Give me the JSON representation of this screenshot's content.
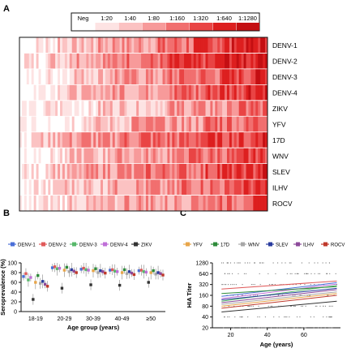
{
  "panels": {
    "a": "A",
    "b": "B",
    "c": "C"
  },
  "chart_data": [
    {
      "panel": "A",
      "type": "heatmap",
      "title": "",
      "scale": {
        "labels": [
          "Neg",
          "1:20",
          "1:40",
          "1:80",
          "1:160",
          "1:320",
          "1:640",
          "1:1280"
        ],
        "colors": [
          "#ffffff",
          "#fde3e3",
          "#fbc2c2",
          "#f79a9a",
          "#f16f6f",
          "#e94444",
          "#dd1f1f",
          "#c40f12"
        ]
      },
      "rows": [
        "DENV-1",
        "DENV-2",
        "DENV-3",
        "DENV-4",
        "ZIKV",
        "YFV",
        "17D",
        "WNV",
        "SLEV",
        "ILHV",
        "ROCV"
      ],
      "row_levels": [
        [
          0,
          1,
          1,
          2,
          2,
          2,
          3,
          3,
          3,
          3,
          3,
          4,
          4,
          4,
          5,
          5,
          5,
          6,
          6,
          6
        ],
        [
          1,
          1,
          2,
          2,
          3,
          3,
          3,
          3,
          4,
          4,
          4,
          4,
          5,
          5,
          5,
          5,
          6,
          6,
          6,
          7
        ],
        [
          0,
          0,
          1,
          1,
          2,
          2,
          2,
          3,
          3,
          3,
          3,
          3,
          4,
          4,
          4,
          4,
          5,
          5,
          5,
          6
        ],
        [
          0,
          1,
          1,
          2,
          2,
          2,
          3,
          3,
          3,
          3,
          3,
          4,
          4,
          4,
          4,
          5,
          5,
          5,
          6,
          6
        ],
        [
          0,
          0,
          1,
          1,
          1,
          1,
          2,
          2,
          2,
          2,
          2,
          2,
          3,
          3,
          3,
          3,
          3,
          4,
          4,
          4
        ],
        [
          0,
          0,
          1,
          1,
          1,
          2,
          2,
          2,
          2,
          3,
          3,
          3,
          3,
          3,
          3,
          4,
          4,
          4,
          4,
          5
        ],
        [
          1,
          2,
          2,
          3,
          3,
          3,
          3,
          3,
          4,
          4,
          4,
          4,
          4,
          4,
          5,
          5,
          5,
          5,
          5,
          6
        ],
        [
          0,
          1,
          1,
          1,
          2,
          2,
          2,
          3,
          3,
          3,
          3,
          3,
          3,
          4,
          4,
          4,
          4,
          4,
          5,
          5
        ],
        [
          1,
          1,
          2,
          2,
          2,
          3,
          3,
          3,
          3,
          3,
          4,
          4,
          4,
          4,
          4,
          5,
          5,
          5,
          5,
          6
        ],
        [
          0,
          1,
          1,
          2,
          2,
          2,
          2,
          3,
          3,
          3,
          3,
          3,
          3,
          4,
          4,
          4,
          4,
          5,
          5,
          5
        ],
        [
          0,
          1,
          1,
          1,
          2,
          2,
          2,
          2,
          3,
          3,
          3,
          3,
          3,
          3,
          4,
          4,
          4,
          4,
          5,
          5
        ]
      ]
    },
    {
      "panel": "B",
      "type": "scatter",
      "title": "",
      "xlabel": "Age group (years)",
      "ylabel": "Seroprevalence (%)",
      "ylim": [
        0,
        100
      ],
      "yticks": [
        0,
        20,
        40,
        60,
        80,
        100
      ],
      "categories": [
        "18-19",
        "20-29",
        "30-39",
        "40-49",
        "≥50"
      ],
      "series": [
        {
          "name": "DENV-1",
          "color": "#4a6fd8",
          "values": [
            72,
            90,
            87,
            85,
            84
          ]
        },
        {
          "name": "DENV-2",
          "color": "#e05a5a",
          "values": [
            78,
            92,
            89,
            86,
            85
          ]
        },
        {
          "name": "DENV-3",
          "color": "#57b86a",
          "values": [
            65,
            88,
            86,
            83,
            82
          ]
        },
        {
          "name": "DENV-4",
          "color": "#c06fd8",
          "values": [
            70,
            89,
            85,
            82,
            81
          ]
        },
        {
          "name": "ZIKV",
          "color": "#333333",
          "values": [
            25,
            48,
            55,
            54,
            60
          ]
        },
        {
          "name": "YFV",
          "color": "#e8a64a",
          "values": [
            60,
            85,
            84,
            80,
            80
          ]
        },
        {
          "name": "17D",
          "color": "#2e8b3a",
          "values": [
            74,
            91,
            88,
            86,
            84
          ]
        },
        {
          "name": "WNV",
          "color": "#a7a7a7",
          "values": [
            58,
            82,
            80,
            78,
            77
          ]
        },
        {
          "name": "SLEV",
          "color": "#2a3c9e",
          "values": [
            62,
            86,
            84,
            82,
            80
          ]
        },
        {
          "name": "ILHV",
          "color": "#8c4a9a",
          "values": [
            56,
            83,
            82,
            79,
            78
          ]
        },
        {
          "name": "ROCV",
          "color": "#c0392b",
          "values": [
            52,
            80,
            79,
            76,
            75
          ]
        }
      ]
    },
    {
      "panel": "C",
      "type": "line",
      "title": "",
      "xlabel": "Age (years)",
      "ylabel": "HIA Titer",
      "xlim": [
        10,
        80
      ],
      "xticks": [
        20,
        40,
        60
      ],
      "ylim": [
        20,
        1280
      ],
      "yscale": "log",
      "yticks": [
        20,
        40,
        80,
        160,
        320,
        640,
        1280
      ],
      "series": [
        {
          "name": "DENV-1",
          "color": "#4a6fd8",
          "x": [
            15,
            78
          ],
          "y": [
            150,
            360
          ]
        },
        {
          "name": "DENV-2",
          "color": "#e05a5a",
          "x": [
            15,
            78
          ],
          "y": [
            240,
            400
          ]
        },
        {
          "name": "DENV-3",
          "color": "#57b86a",
          "x": [
            15,
            78
          ],
          "y": [
            110,
            300
          ]
        },
        {
          "name": "DENV-4",
          "color": "#c06fd8",
          "x": [
            15,
            78
          ],
          "y": [
            130,
            330
          ]
        },
        {
          "name": "ZIKV",
          "color": "#333333",
          "x": [
            15,
            78
          ],
          "y": [
            55,
            110
          ]
        },
        {
          "name": "YFV",
          "color": "#e8a64a",
          "x": [
            15,
            78
          ],
          "y": [
            80,
            180
          ]
        },
        {
          "name": "17D",
          "color": "#2e8b3a",
          "x": [
            15,
            78
          ],
          "y": [
            180,
            280
          ]
        },
        {
          "name": "WNV",
          "color": "#a7a7a7",
          "x": [
            15,
            78
          ],
          "y": [
            90,
            200
          ]
        },
        {
          "name": "SLEV",
          "color": "#2a3c9e",
          "x": [
            15,
            78
          ],
          "y": [
            120,
            250
          ]
        },
        {
          "name": "ILHV",
          "color": "#8c4a9a",
          "x": [
            15,
            78
          ],
          "y": [
            100,
            230
          ]
        },
        {
          "name": "ROCV",
          "color": "#c0392b",
          "x": [
            15,
            78
          ],
          "y": [
            70,
            160
          ]
        }
      ]
    }
  ]
}
